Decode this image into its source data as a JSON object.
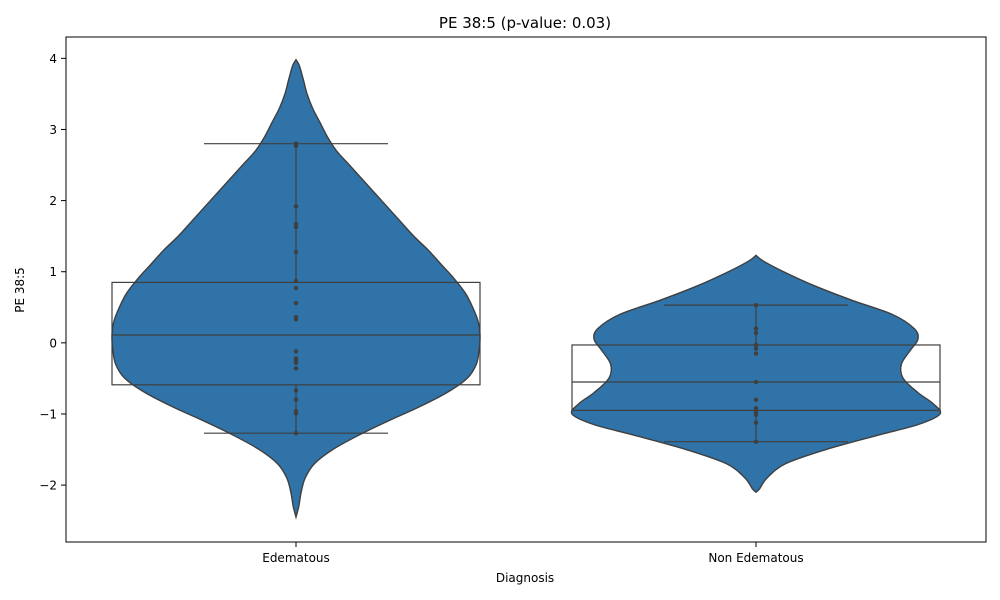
{
  "chart_data": {
    "type": "violin",
    "title": "PE 38:5 (p-value: 0.03)",
    "xlabel": "Diagnosis",
    "ylabel": "PE 38:5",
    "ylim": [
      -2.8,
      4.3
    ],
    "yticks": [
      {
        "value": -2,
        "label": "−2"
      },
      {
        "value": -1,
        "label": "−1"
      },
      {
        "value": 0,
        "label": "0"
      },
      {
        "value": 1,
        "label": "1"
      },
      {
        "value": 2,
        "label": "2"
      },
      {
        "value": 3,
        "label": "3"
      },
      {
        "value": 4,
        "label": "4"
      }
    ],
    "grid": false,
    "colors": {
      "violin": "#2f73a8",
      "outline": "#3f3f3f",
      "points": "#3f3f3f"
    },
    "categories": [
      {
        "name": "Edematous",
        "box": {
          "q1": -0.59,
          "median": 0.11,
          "q3": 0.85,
          "whisker_low": -1.27,
          "whisker_high": 2.8
        },
        "points": [
          2.8,
          2.77,
          1.92,
          1.67,
          1.63,
          1.28,
          0.87,
          0.77,
          0.56,
          0.36,
          0.33,
          -0.12,
          -0.22,
          -0.26,
          -0.28,
          -0.36,
          -0.67,
          -0.8,
          -0.96,
          -0.99,
          -1.27
        ],
        "density": [
          {
            "y": 3.98,
            "w": 0.0
          },
          {
            "y": 3.9,
            "w": 0.018
          },
          {
            "y": 3.7,
            "w": 0.04
          },
          {
            "y": 3.5,
            "w": 0.06
          },
          {
            "y": 3.3,
            "w": 0.09
          },
          {
            "y": 3.1,
            "w": 0.13
          },
          {
            "y": 2.9,
            "w": 0.17
          },
          {
            "y": 2.7,
            "w": 0.22
          },
          {
            "y": 2.5,
            "w": 0.29
          },
          {
            "y": 2.3,
            "w": 0.36
          },
          {
            "y": 2.1,
            "w": 0.43
          },
          {
            "y": 1.9,
            "w": 0.5
          },
          {
            "y": 1.7,
            "w": 0.57
          },
          {
            "y": 1.5,
            "w": 0.64
          },
          {
            "y": 1.3,
            "w": 0.72
          },
          {
            "y": 1.1,
            "w": 0.79
          },
          {
            "y": 0.9,
            "w": 0.86
          },
          {
            "y": 0.7,
            "w": 0.92
          },
          {
            "y": 0.5,
            "w": 0.96
          },
          {
            "y": 0.3,
            "w": 0.99
          },
          {
            "y": 0.1,
            "w": 1.0
          },
          {
            "y": -0.1,
            "w": 0.995
          },
          {
            "y": -0.3,
            "w": 0.98
          },
          {
            "y": -0.5,
            "w": 0.93
          },
          {
            "y": -0.7,
            "w": 0.82
          },
          {
            "y": -0.9,
            "w": 0.67
          },
          {
            "y": -1.1,
            "w": 0.5
          },
          {
            "y": -1.3,
            "w": 0.34
          },
          {
            "y": -1.5,
            "w": 0.2
          },
          {
            "y": -1.7,
            "w": 0.1
          },
          {
            "y": -1.9,
            "w": 0.05
          },
          {
            "y": -2.1,
            "w": 0.028
          },
          {
            "y": -2.3,
            "w": 0.015
          },
          {
            "y": -2.45,
            "w": 0.0
          }
        ]
      },
      {
        "name": "Non Edematous",
        "box": {
          "q1": -0.95,
          "median": -0.55,
          "q3": -0.03,
          "whisker_low": -1.39,
          "whisker_high": 0.53
        },
        "points": [
          0.53,
          0.2,
          0.14,
          -0.03,
          -0.08,
          -0.15,
          -0.55,
          -0.8,
          -0.92,
          -0.97,
          -1.01,
          -1.12,
          -1.39
        ],
        "density": [
          {
            "y": 1.23,
            "w": 0.0
          },
          {
            "y": 1.15,
            "w": 0.04
          },
          {
            "y": 1.0,
            "w": 0.15
          },
          {
            "y": 0.8,
            "w": 0.32
          },
          {
            "y": 0.6,
            "w": 0.52
          },
          {
            "y": 0.4,
            "w": 0.74
          },
          {
            "y": 0.2,
            "w": 0.86
          },
          {
            "y": 0.05,
            "w": 0.88
          },
          {
            "y": -0.1,
            "w": 0.84
          },
          {
            "y": -0.3,
            "w": 0.79
          },
          {
            "y": -0.5,
            "w": 0.8
          },
          {
            "y": -0.7,
            "w": 0.88
          },
          {
            "y": -0.85,
            "w": 0.96
          },
          {
            "y": -1.0,
            "w": 1.0
          },
          {
            "y": -1.15,
            "w": 0.88
          },
          {
            "y": -1.3,
            "w": 0.66
          },
          {
            "y": -1.5,
            "w": 0.38
          },
          {
            "y": -1.7,
            "w": 0.16
          },
          {
            "y": -1.9,
            "w": 0.06
          },
          {
            "y": -2.05,
            "w": 0.02
          },
          {
            "y": -2.1,
            "w": 0.0
          }
        ]
      }
    ]
  }
}
